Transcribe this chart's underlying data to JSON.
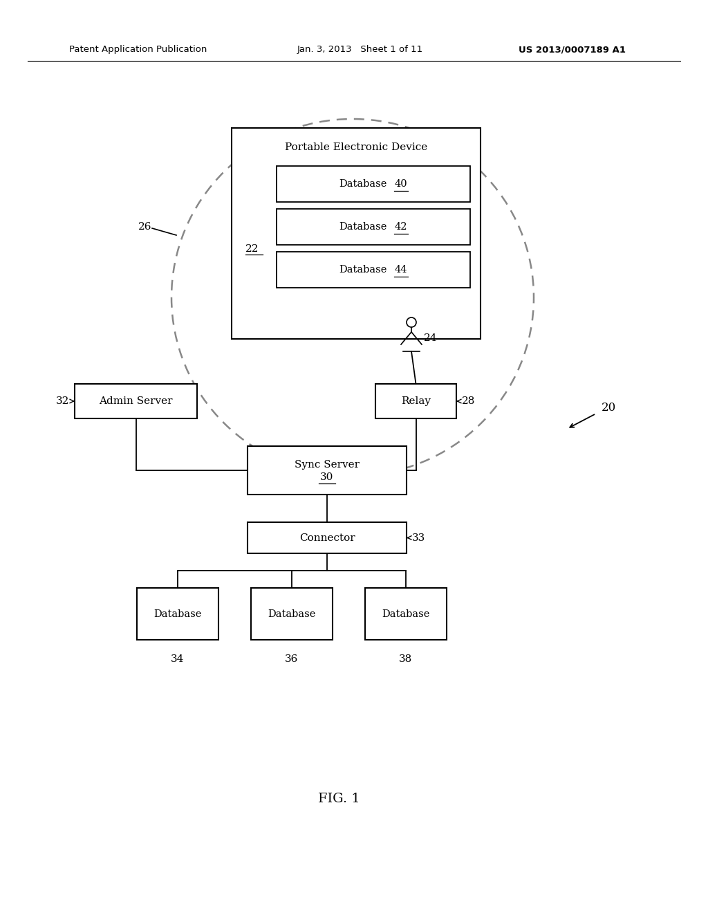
{
  "bg_color": "#ffffff",
  "header_left": "Patent Application Publication",
  "header_mid": "Jan. 3, 2013   Sheet 1 of 11",
  "header_right": "US 2013/0007189 A1",
  "fig_label": "FIG. 1"
}
